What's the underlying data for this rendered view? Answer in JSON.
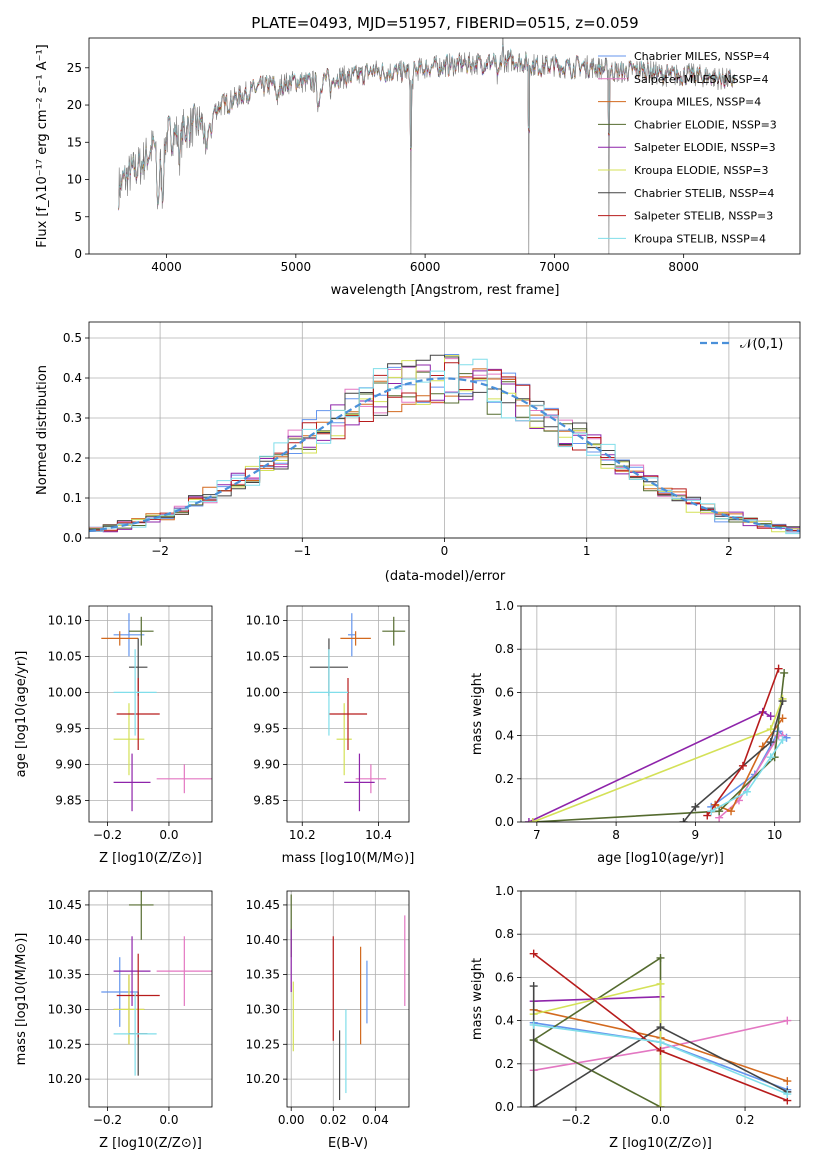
{
  "figure": {
    "title": "PLATE=0493, MJD=51957, FIBERID=0515, z=0.059",
    "flux_ylabel": "Flux [f$_{\\lambda}$10$^{-17}$ erg cm$^{-2}$ s$^{-1}$ A$^{-1}$]",
    "flux_xlabel": "wavelength [Angstrom, rest frame]",
    "resid_ylabel": "Normed distribution",
    "resid_xlabel": "(data-model)/error",
    "gauss_legend": "$\\mathcal{N}(0,1)$",
    "age_label": "age  [log$_{10}$($age/yr$)]",
    "z_label": "Z [log$_{10}$($Z/Z_{\\odot}$)]",
    "mass_label": "mass [log$_{10}$($M/M_{\\odot}$)]",
    "ebv_label": "E(B-V)",
    "mw_label": "mass weight"
  },
  "colors": [
    "#6495ed",
    "#e377c2",
    "#d2691e",
    "#556b2f",
    "#8e24aa",
    "#d4e157",
    "#444444",
    "#b71c1c",
    "#80deea"
  ],
  "chart_data": [
    {
      "type": "line",
      "id": "spectrum",
      "xlim": [
        3400,
        8900
      ],
      "ylim": [
        0,
        29
      ],
      "grid": false,
      "xticks": [
        4000,
        5000,
        6000,
        7000,
        8000
      ],
      "yticks": [
        0,
        5,
        10,
        15,
        20,
        25
      ],
      "legend_position": "right",
      "model_legend": [
        "Chabrier MILES, N$_{SSP}$=4",
        "Salpeter MILES, N$_{SSP}$=4",
        "Kroupa MILES, N$_{SSP}$=4",
        "Chabrier ELODIE, N$_{SSP}$=3",
        "Salpeter ELODIE, N$_{SSP}$=3",
        "Kroupa ELODIE, N$_{SSP}$=3",
        "Chabrier STELIB, N$_{SSP}$=4",
        "Salpeter STELIB, N$_{SSP}$=3",
        "Kroupa STELIB, N$_{SSP}$=4"
      ],
      "continuum": [
        [
          3630,
          9
        ],
        [
          3700,
          10.5
        ],
        [
          3800,
          12
        ],
        [
          3900,
          14.5
        ],
        [
          4000,
          15.8
        ],
        [
          4100,
          16.5
        ],
        [
          4200,
          17.2
        ],
        [
          4300,
          17.8
        ],
        [
          4400,
          19.8
        ],
        [
          4500,
          20.6
        ],
        [
          4600,
          21.5
        ],
        [
          4700,
          22.2
        ],
        [
          4800,
          22.7
        ],
        [
          4900,
          22.8
        ],
        [
          5000,
          23.2
        ],
        [
          5100,
          23.0
        ],
        [
          5200,
          23.3
        ],
        [
          5300,
          23.8
        ],
        [
          5400,
          23.7
        ],
        [
          5500,
          24.0
        ],
        [
          5600,
          24.6
        ],
        [
          5700,
          24.5
        ],
        [
          5800,
          24.4
        ],
        [
          5900,
          24.6
        ],
        [
          6000,
          25.0
        ],
        [
          6100,
          25.2
        ],
        [
          6200,
          25.4
        ],
        [
          6300,
          25.5
        ],
        [
          6400,
          25.6
        ],
        [
          6500,
          25.7
        ],
        [
          6600,
          25.9
        ],
        [
          6700,
          26.0
        ],
        [
          6800,
          25.6
        ],
        [
          6900,
          25.2
        ],
        [
          7000,
          25.4
        ],
        [
          7100,
          25.0
        ],
        [
          7200,
          25.2
        ],
        [
          7300,
          25.1
        ],
        [
          7400,
          24.8
        ],
        [
          7500,
          24.4
        ],
        [
          7600,
          24.6
        ],
        [
          7700,
          24.8
        ],
        [
          7800,
          24.2
        ],
        [
          7900,
          23.9
        ],
        [
          8000,
          24.1
        ],
        [
          8100,
          24.0
        ],
        [
          8200,
          23.8
        ],
        [
          8300,
          23.5
        ],
        [
          8400,
          23.2
        ]
      ],
      "absorption_lines": [
        [
          3934,
          8
        ],
        [
          3969,
          7
        ],
        [
          4102,
          3
        ],
        [
          4304,
          5
        ],
        [
          4341,
          2.5
        ],
        [
          4861,
          2
        ],
        [
          5175,
          3
        ],
        [
          5270,
          1.5
        ],
        [
          5893,
          2.5
        ],
        [
          6563,
          2.5
        ]
      ],
      "spikes": [
        [
          3925,
          -2
        ],
        [
          5890,
          -25
        ],
        [
          6800,
          -26
        ],
        [
          7420,
          -25
        ],
        [
          6600,
          3.5
        ]
      ]
    },
    {
      "type": "bar",
      "id": "residual-histograms",
      "xlim": [
        -2.5,
        2.5
      ],
      "ylim": [
        0,
        0.54
      ],
      "grid": true,
      "xticks": [
        -2,
        -1,
        0,
        1,
        2
      ],
      "yticks": [
        0,
        0.1,
        0.2,
        0.3,
        0.4,
        0.5
      ],
      "gaussian": {
        "mean": 0,
        "sigma": 1
      }
    },
    {
      "type": "scatter",
      "id": "age-vs-Z",
      "xlim": [
        -0.26,
        0.14
      ],
      "ylim": [
        9.82,
        10.12
      ],
      "grid": true,
      "xticks": [
        -0.2,
        0.0
      ],
      "yticks": [
        9.85,
        9.9,
        9.95,
        10.0,
        10.05,
        10.1
      ],
      "points": [
        [
          -0.13,
          10.08,
          0.05,
          0.03
        ],
        [
          0.05,
          9.88,
          0.09,
          0.02
        ],
        [
          -0.16,
          10.075,
          0.06,
          0.01
        ],
        [
          -0.09,
          10.085,
          0.04,
          0.02
        ],
        [
          -0.12,
          9.875,
          0.06,
          0.04
        ],
        [
          -0.13,
          9.935,
          0.05,
          0.05
        ],
        [
          -0.1,
          10.035,
          0.03,
          0.04
        ],
        [
          -0.1,
          9.97,
          0.07,
          0.05
        ],
        [
          -0.11,
          10.0,
          0.07,
          0.06
        ]
      ]
    },
    {
      "type": "scatter",
      "id": "age-vs-mass",
      "xlim": [
        10.16,
        10.48
      ],
      "ylim": [
        9.82,
        10.12
      ],
      "grid": true,
      "xticks": [
        10.2,
        10.4
      ],
      "yticks": [
        9.85,
        9.9,
        9.95,
        10.0,
        10.05,
        10.1
      ],
      "points": [
        [
          10.33,
          10.08,
          0.01,
          0.03
        ],
        [
          10.38,
          9.88,
          0.04,
          0.02
        ],
        [
          10.34,
          10.075,
          0.04,
          0.01
        ],
        [
          10.44,
          10.085,
          0.03,
          0.02
        ],
        [
          10.35,
          9.875,
          0.04,
          0.04
        ],
        [
          10.31,
          9.935,
          0.02,
          0.05
        ],
        [
          10.27,
          10.035,
          0.05,
          0.04
        ],
        [
          10.32,
          9.97,
          0.05,
          0.05
        ],
        [
          10.27,
          10.0,
          0.05,
          0.06
        ]
      ]
    },
    {
      "type": "line",
      "id": "weight-vs-age",
      "xlim": [
        6.8,
        10.32
      ],
      "ylim": [
        0,
        1.0
      ],
      "grid": true,
      "xticks": [
        7,
        8,
        9,
        10
      ],
      "yticks": [
        0,
        0.2,
        0.4,
        0.6,
        0.8,
        1.0
      ],
      "series": [
        {
          "x": [
            9.2,
            9.75,
            10.05,
            10.15
          ],
          "y": [
            0.07,
            0.22,
            0.42,
            0.39
          ]
        },
        {
          "x": [
            9.3,
            9.55,
            10.05,
            10.1
          ],
          "y": [
            0.02,
            0.1,
            0.4,
            0.4
          ]
        },
        {
          "x": [
            9.25,
            9.45,
            9.85,
            10.1
          ],
          "y": [
            0.08,
            0.05,
            0.35,
            0.48
          ]
        },
        {
          "x": [
            6.95,
            9.3,
            10.0,
            10.12
          ],
          "y": [
            0.0,
            0.05,
            0.3,
            0.69
          ]
        },
        {
          "x": [
            6.9,
            9.85,
            9.95
          ],
          "y": [
            0.0,
            0.51,
            0.49
          ]
        },
        {
          "x": [
            6.95,
            9.95,
            10.1
          ],
          "y": [
            0.0,
            0.43,
            0.57
          ]
        },
        {
          "x": [
            8.85,
            9.0,
            9.95,
            10.1
          ],
          "y": [
            0.0,
            0.07,
            0.37,
            0.56
          ]
        },
        {
          "x": [
            9.15,
            9.6,
            10.05
          ],
          "y": [
            0.03,
            0.26,
            0.71
          ]
        },
        {
          "x": [
            9.2,
            9.65,
            9.95,
            10.1
          ],
          "y": [
            0.05,
            0.14,
            0.3,
            0.38
          ]
        }
      ]
    },
    {
      "type": "scatter",
      "id": "mass-vs-Z",
      "xlim": [
        -0.26,
        0.14
      ],
      "ylim": [
        10.16,
        10.47
      ],
      "grid": true,
      "xticks": [
        -0.2,
        0.0
      ],
      "yticks": [
        10.2,
        10.25,
        10.3,
        10.35,
        10.4,
        10.45
      ],
      "points": [
        [
          -0.16,
          10.325,
          0.06,
          0.05
        ],
        [
          0.05,
          10.355,
          0.09,
          0.05
        ],
        [
          -0.13,
          10.3,
          0.05,
          0.05
        ],
        [
          -0.09,
          10.45,
          0.04,
          0.05
        ],
        [
          -0.12,
          10.355,
          0.06,
          0.05
        ],
        [
          -0.13,
          10.3,
          0.05,
          0.05
        ],
        [
          -0.1,
          10.265,
          0.03,
          0.06
        ],
        [
          -0.1,
          10.32,
          0.07,
          0.06
        ],
        [
          -0.11,
          10.265,
          0.07,
          0.06
        ]
      ]
    },
    {
      "type": "scatter",
      "id": "mass-vs-EBV",
      "xlim": [
        -0.002,
        0.056
      ],
      "ylim": [
        10.16,
        10.47
      ],
      "grid": true,
      "xticks": [
        0.0,
        0.02,
        0.04
      ],
      "yticks": [
        10.2,
        10.25,
        10.3,
        10.35,
        10.4,
        10.45
      ],
      "points": [
        [
          0.036,
          10.325,
          0,
          0.045
        ],
        [
          0.054,
          10.37,
          0,
          0.065
        ],
        [
          0.033,
          10.32,
          0,
          0.07
        ],
        [
          0.0,
          10.42,
          0,
          0.045
        ],
        [
          0.0,
          10.37,
          0,
          0.045
        ],
        [
          0.001,
          10.29,
          0,
          0.05
        ],
        [
          0.023,
          10.22,
          0,
          0.05
        ],
        [
          0.02,
          10.33,
          0,
          0.075
        ],
        [
          0.026,
          10.24,
          0,
          0.06
        ]
      ]
    },
    {
      "type": "line",
      "id": "weight-vs-Z",
      "xlim": [
        -0.33,
        0.33
      ],
      "ylim": [
        0,
        1.0
      ],
      "grid": true,
      "xticks": [
        -0.2,
        0.0,
        0.2
      ],
      "yticks": [
        0,
        0.2,
        0.4,
        0.6,
        0.8,
        1.0
      ],
      "series": [
        {
          "x": [
            -0.3,
            0.0,
            0.3
          ],
          "y": [
            0.39,
            0.3,
            0.08
          ]
        },
        {
          "x": [
            -0.3,
            0.0,
            0.3
          ],
          "y": [
            0.17,
            0.27,
            0.4
          ]
        },
        {
          "x": [
            -0.3,
            0.0,
            0.3
          ],
          "y": [
            0.45,
            0.32,
            0.12
          ]
        },
        {
          "x": [
            -0.3,
            0.0,
            0.0,
            -0.3
          ],
          "y": [
            0.31,
            0.69,
            0.0,
            0.31
          ]
        },
        {
          "x": [
            -0.3,
            0.0
          ],
          "y": [
            0.49,
            0.51
          ]
        },
        {
          "x": [
            -0.3,
            0.0,
            0.0
          ],
          "y": [
            0.43,
            0.57,
            0.0
          ]
        },
        {
          "x": [
            -0.3,
            -0.3,
            0.0,
            0.3
          ],
          "y": [
            0.56,
            0.0,
            0.37,
            0.07
          ]
        },
        {
          "x": [
            -0.3,
            0.0,
            0.3
          ],
          "y": [
            0.71,
            0.26,
            0.03
          ]
        },
        {
          "x": [
            -0.3,
            0.0,
            0.3
          ],
          "y": [
            0.38,
            0.3,
            0.06
          ]
        }
      ]
    }
  ]
}
